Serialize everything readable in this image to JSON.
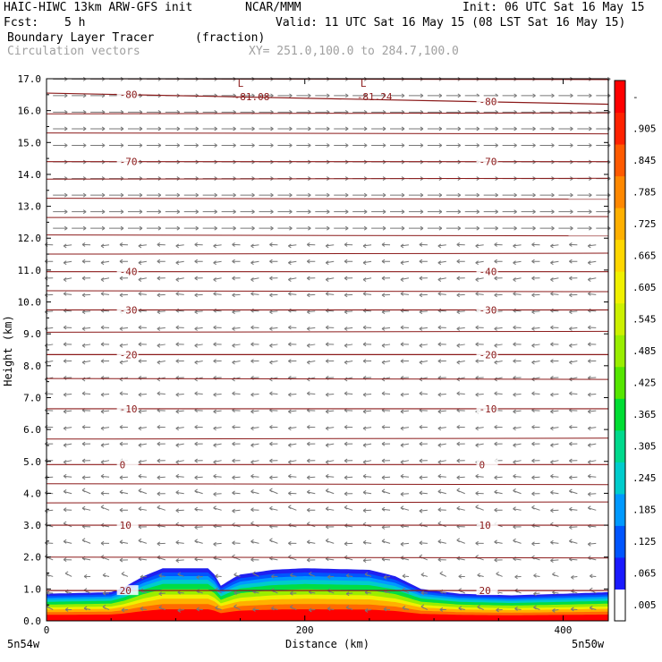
{
  "header": {
    "model": "HAIC-HIWC 13km ARW-GFS init",
    "center": "NCAR/MMM",
    "init": "Init: 06 UTC Sat 16 May 15",
    "fcst_label": "Fcst:",
    "fcst_value": "5 h",
    "valid": "Valid: 11 UTC Sat 16 May 15 (08 LST Sat 16 May 15)",
    "field1": "Boundary Layer Tracer",
    "field1_units": "(fraction)",
    "field2": "Circulation vectors",
    "xsection": "XY= 251.0,100.0 to 284.7,100.0"
  },
  "chart_data": {
    "type": "area",
    "xlabel": "Distance (km)",
    "ylabel": "Height (km)",
    "xlim": [
      0,
      435
    ],
    "ylim": [
      0,
      17
    ],
    "xticks": [
      "0",
      "200",
      "400"
    ],
    "xtick_values": [
      0,
      200,
      400
    ],
    "yticks": [
      "0.0",
      "1.0",
      "2.0",
      "3.0",
      "4.0",
      "5.0",
      "6.0",
      "7.0",
      "8.0",
      "9.0",
      "10.0",
      "11.0",
      "12.0",
      "13.0",
      "14.0",
      "15.0",
      "16.0",
      "17.0"
    ],
    "end_labels": {
      "left": "5n54w",
      "right": "5n50w"
    },
    "tracer_top": {
      "x": [
        0,
        50,
        60,
        75,
        90,
        125,
        130,
        135,
        145,
        150,
        175,
        200,
        250,
        270,
        290,
        300,
        320,
        360,
        400,
        435
      ],
      "blue_top_km": [
        0.85,
        0.9,
        1.05,
        1.4,
        1.65,
        1.65,
        1.45,
        1.1,
        1.35,
        1.45,
        1.6,
        1.65,
        1.6,
        1.4,
        1.0,
        0.95,
        0.85,
        0.8,
        0.85,
        0.9
      ]
    },
    "temperature_contours": [
      {
        "label": "-80",
        "y": [
          16.55,
          16.2
        ]
      },
      {
        "label": "-70",
        "y": [
          14.4,
          14.4
        ]
      },
      {
        "label": "-40",
        "y": [
          10.95,
          10.95
        ]
      },
      {
        "label": "-30",
        "y": [
          9.75,
          9.75
        ]
      },
      {
        "label": "-20",
        "y": [
          8.35,
          8.35
        ]
      },
      {
        "label": "-10",
        "y": [
          6.65,
          6.65
        ]
      },
      {
        "label": "0",
        "y": [
          4.9,
          4.9
        ]
      },
      {
        "label": "10",
        "y": [
          3.0,
          3.0
        ]
      },
      {
        "label": "20",
        "y": [
          0.95,
          0.95
        ]
      }
    ],
    "minima": [
      {
        "label": "L",
        "value": "-81.08",
        "x": 148
      },
      {
        "label": "L",
        "value": "-81.24",
        "x": 243
      }
    ],
    "colorbar": {
      "ticks": [
        ".005",
        ".065",
        ".125",
        ".185",
        ".245",
        ".305",
        ".365",
        ".425",
        ".485",
        ".545",
        ".605",
        ".665",
        ".725",
        ".785",
        ".845",
        ".905",
        "-"
      ],
      "colors": [
        "#ffffff",
        "#1a1aff",
        "#0055ff",
        "#0099ff",
        "#00cccc",
        "#00d98c",
        "#00dd33",
        "#55e600",
        "#99ee00",
        "#ccf000",
        "#f0f000",
        "#ffd700",
        "#ffb000",
        "#ff8800",
        "#ff5a00",
        "#ff2200",
        "#ff0000"
      ]
    }
  }
}
